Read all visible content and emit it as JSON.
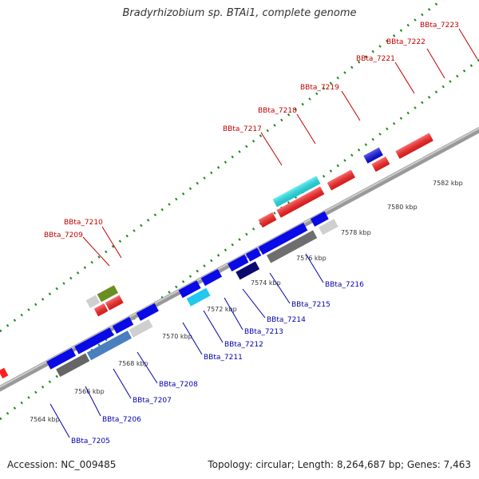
{
  "title": "Bradyrhizobium sp. BTAi1, complete genome",
  "footer": {
    "accession": "Accession: NC_009485",
    "topology": "Topology: circular; Length: 8,264,687 bp; Genes: 7,463"
  },
  "ruler": [
    "7564 kbp",
    "7566 kbp",
    "7568 kbp",
    "7570 kbp",
    "7572 kbp",
    "7574 kbp",
    "7576 kbp",
    "7578 kbp",
    "7580 kbp",
    "7582 kbp"
  ],
  "genes_top": [
    {
      "label": "BBta_7209",
      "color": "#c00000"
    },
    {
      "label": "BBta_7210",
      "color": "#c00000"
    },
    {
      "label": "BBta_7217",
      "color": "#c00000"
    },
    {
      "label": "BBta_7218",
      "color": "#c00000"
    },
    {
      "label": "BBta_7219",
      "color": "#c00000"
    },
    {
      "label": "BBta_7221",
      "color": "#c00000"
    },
    {
      "label": "BBta_7222",
      "color": "#c00000"
    },
    {
      "label": "BBta_7223",
      "color": "#c00000"
    }
  ],
  "genes_bottom": [
    {
      "label": "BBta_7205",
      "color": "#0000b0"
    },
    {
      "label": "BBta_7206",
      "color": "#0000b0"
    },
    {
      "label": "BBta_7207",
      "color": "#0000b0"
    },
    {
      "label": "BBta_7208",
      "color": "#0000b0"
    },
    {
      "label": "BBta_7211",
      "color": "#0000b0"
    },
    {
      "label": "BBta_7212",
      "color": "#0000b0"
    },
    {
      "label": "BBta_7213",
      "color": "#0000b0"
    },
    {
      "label": "BBta_7214",
      "color": "#0000b0"
    },
    {
      "label": "BBta_7215",
      "color": "#0000b0"
    },
    {
      "label": "BBta_7216",
      "color": "#0000b0"
    }
  ]
}
